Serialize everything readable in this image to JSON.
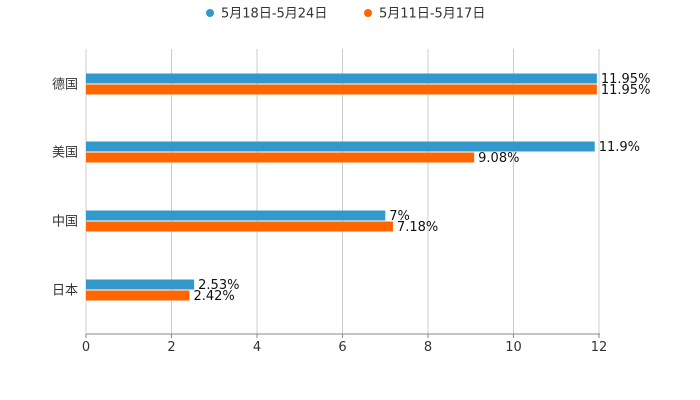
{
  "chart_data": {
    "type": "bar",
    "orientation": "horizontal",
    "title": "",
    "xlabel": "",
    "ylabel": "",
    "xlim": [
      0,
      12
    ],
    "x_ticks": [
      0,
      2,
      4,
      6,
      8,
      10,
      12
    ],
    "grid": true,
    "legend_position": "top-center",
    "categories": [
      "德国",
      "美国",
      "中国",
      "日本"
    ],
    "series": [
      {
        "name": "5月18日-5月24日",
        "color": "#3399cc",
        "values": [
          11.95,
          11.9,
          7,
          2.53
        ],
        "labels": [
          "11.95%",
          "11.9%",
          "7%",
          "2.53%"
        ]
      },
      {
        "name": "5月11日-5月17日",
        "color": "#ff6600",
        "values": [
          11.95,
          9.08,
          7.18,
          2.42
        ],
        "labels": [
          "11.95%",
          "9.08%",
          "7.18%",
          "2.42%"
        ]
      }
    ]
  }
}
